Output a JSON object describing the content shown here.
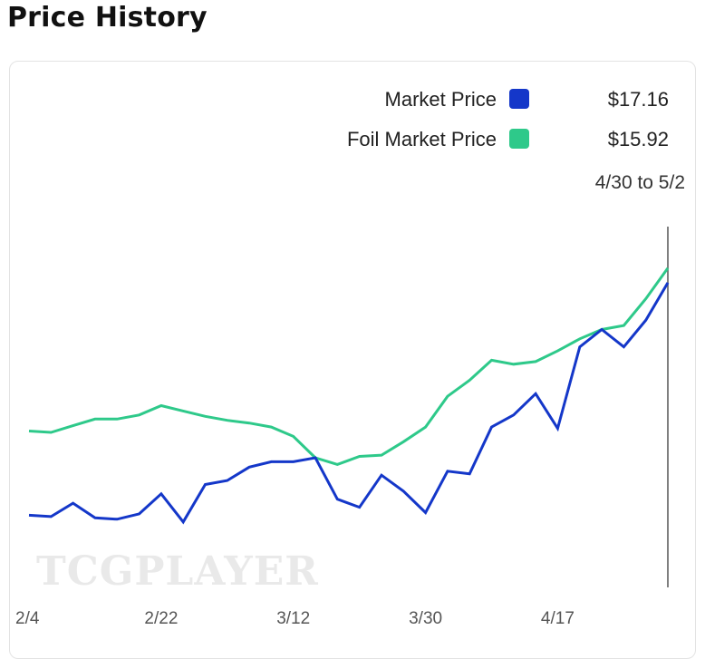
{
  "header": {
    "title": "Price History"
  },
  "watermark": "TCGPLAYER",
  "legend": {
    "items": [
      {
        "label": "Market Price",
        "value": "$17.16",
        "color": "#1437c9"
      },
      {
        "label": "Foil Market Price",
        "value": "$15.92",
        "color": "#2ec98a"
      }
    ],
    "range": "4/30 to 5/2"
  },
  "chart_data": {
    "type": "line",
    "x": [
      "2/4",
      "2/7",
      "2/10",
      "2/13",
      "2/16",
      "2/19",
      "2/22",
      "2/25",
      "2/28",
      "3/3",
      "3/6",
      "3/9",
      "3/12",
      "3/15",
      "3/18",
      "3/21",
      "3/24",
      "3/27",
      "3/30",
      "4/2",
      "4/5",
      "4/8",
      "4/11",
      "4/14",
      "4/17",
      "4/20",
      "4/23",
      "4/26",
      "4/29",
      "5/2"
    ],
    "x_ticks": [
      "2/4",
      "2/22",
      "3/12",
      "3/30",
      "4/17"
    ],
    "series": [
      {
        "name": "Market Price",
        "color": "#1437c9",
        "values": [
          5.4,
          5.3,
          6.3,
          5.2,
          5.1,
          5.5,
          7.0,
          4.9,
          7.7,
          8.0,
          9.0,
          9.4,
          9.4,
          9.7,
          6.6,
          6.0,
          8.4,
          7.2,
          5.6,
          8.7,
          8.5,
          12.0,
          12.9,
          14.5,
          11.9,
          18.0,
          19.3,
          18.0,
          20.0,
          22.8
        ]
      },
      {
        "name": "Foil Market Price",
        "color": "#2ec98a",
        "values": [
          11.7,
          11.6,
          12.1,
          12.6,
          12.6,
          12.9,
          13.6,
          13.2,
          12.8,
          12.5,
          12.3,
          12.0,
          11.3,
          9.7,
          9.2,
          9.8,
          9.9,
          10.9,
          12.0,
          14.3,
          15.5,
          17.0,
          16.7,
          16.9,
          17.7,
          18.6,
          19.3,
          19.6,
          21.6,
          23.9
        ]
      }
    ],
    "ylim": [
      0,
      27
    ],
    "grid": false,
    "legend_position": "top-right"
  }
}
